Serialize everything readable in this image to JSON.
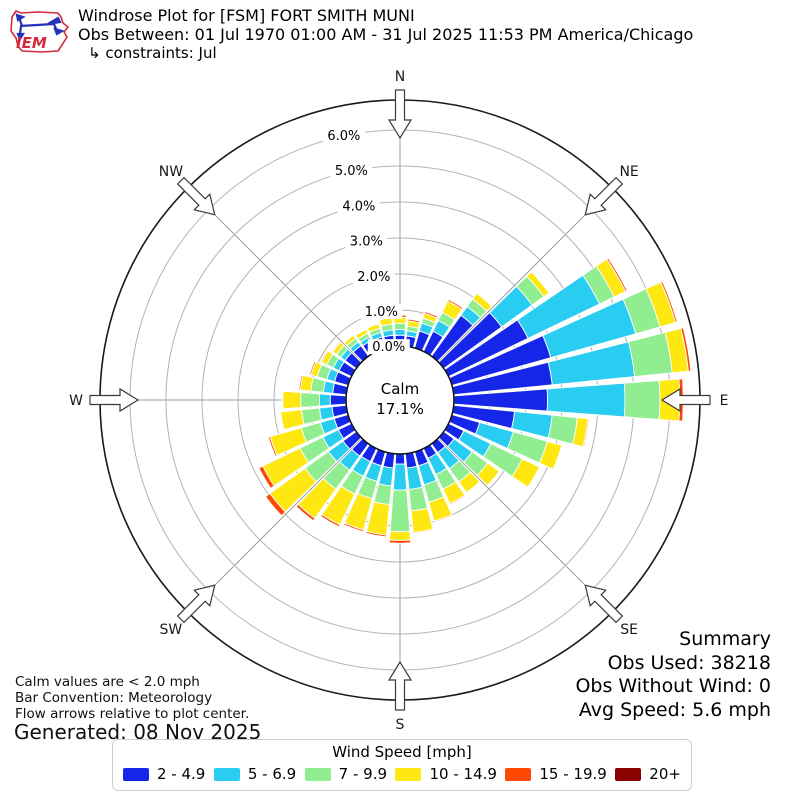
{
  "header": {
    "title": "Windrose Plot for [FSM] FORT SMITH MUNI",
    "subtitle": "Obs Between: 01 Jul 1970 01:00 AM - 31 Jul 2025 11:53 PM America/Chicago",
    "constraints": "↳ constraints: Jul",
    "logo_text": "IEM"
  },
  "notes": {
    "line1": "Calm values are < 2.0 mph",
    "line2": "Bar Convention: Meteorology",
    "line3": "Flow arrows relative to plot center.",
    "generated": "Generated: 08 Nov 2025"
  },
  "summary": {
    "title": "Summary",
    "obs_used": "Obs Used: 38218",
    "obs_without_wind": "Obs Without Wind: 0",
    "avg_speed": "Avg Speed: 5.6 mph"
  },
  "legend": {
    "title": "Wind Speed [mph]"
  },
  "chart_data": {
    "type": "windrose",
    "station": "[FSM] FORT SMITH MUNI",
    "center_label": {
      "line1": "Calm",
      "line2": "17.1%"
    },
    "calm_pct": 17.1,
    "ring_ticks_pct": [
      0,
      1,
      2,
      3,
      4,
      5,
      6
    ],
    "ring_labels": [
      "0.0%",
      "1.0%",
      "2.0%",
      "3.0%",
      "4.0%",
      "5.0%",
      "6.0%"
    ],
    "compass": [
      {
        "label": "N",
        "deg": 0
      },
      {
        "label": "NE",
        "deg": 45
      },
      {
        "label": "E",
        "deg": 90
      },
      {
        "label": "SE",
        "deg": 135
      },
      {
        "label": "S",
        "deg": 180
      },
      {
        "label": "SW",
        "deg": 225
      },
      {
        "label": "W",
        "deg": 270
      },
      {
        "label": "NW",
        "deg": 315
      }
    ],
    "speed_bins": [
      {
        "label": "2 - 4.9",
        "color": "#1526e8"
      },
      {
        "label": "5 - 6.9",
        "color": "#29cdf1"
      },
      {
        "label": "7 - 9.9",
        "color": "#90ee90"
      },
      {
        "label": "10 - 14.9",
        "color": "#ffe712"
      },
      {
        "label": "15 - 19.9",
        "color": "#fd4903"
      },
      {
        "label": "20+",
        "color": "#8b0000"
      }
    ],
    "directions_deg": [
      0,
      10,
      20,
      30,
      40,
      50,
      60,
      70,
      80,
      90,
      100,
      110,
      120,
      130,
      140,
      150,
      160,
      170,
      180,
      190,
      200,
      210,
      220,
      230,
      240,
      250,
      260,
      270,
      280,
      290,
      300,
      310,
      320,
      330,
      340,
      350
    ],
    "frequencies_pct_by_bin": [
      [
        0.3,
        0.16,
        0.17,
        0.17,
        0.06,
        0
      ],
      [
        0.29,
        0.14,
        0.13,
        0.15,
        0.05,
        0
      ],
      [
        0.49,
        0.23,
        0.14,
        0.14,
        0.05,
        0
      ],
      [
        0.62,
        0.33,
        0.25,
        0.35,
        0.05,
        0
      ],
      [
        1.4,
        0.3,
        0.25,
        0.2,
        0.02,
        0
      ],
      [
        1.98,
        1.04,
        0.4,
        0.18,
        0.02,
        0
      ],
      [
        2.45,
        2.2,
        0.45,
        0.35,
        0.05,
        0
      ],
      [
        2.85,
        2.45,
        0.7,
        0.45,
        0.05,
        0
      ],
      [
        2.75,
        2.3,
        1.05,
        0.45,
        0.07,
        0
      ],
      [
        2.6,
        2.15,
        0.97,
        0.55,
        0.1,
        0
      ],
      [
        1.7,
        1.05,
        0.7,
        0.3,
        0.03,
        0
      ],
      [
        0.8,
        0.97,
        0.98,
        0.42,
        0.02,
        0
      ],
      [
        0.47,
        0.83,
        0.97,
        0.53,
        0.02,
        0
      ],
      [
        0.35,
        0.62,
        0.53,
        0.4,
        0.02,
        0
      ],
      [
        0.3,
        0.55,
        0.45,
        0.37,
        0.02,
        0
      ],
      [
        0.3,
        0.5,
        0.45,
        0.45,
        0.03,
        0
      ],
      [
        0.4,
        0.55,
        0.5,
        0.55,
        0.03,
        0
      ],
      [
        0.4,
        0.6,
        0.6,
        0.6,
        0.03,
        0
      ],
      [
        0.28,
        0.72,
        1.16,
        0.24,
        0.08,
        0
      ],
      [
        0.4,
        0.5,
        0.52,
        0.85,
        0.05,
        0
      ],
      [
        0.4,
        0.45,
        0.5,
        0.9,
        0.05,
        0
      ],
      [
        0.4,
        0.45,
        0.55,
        0.95,
        0.06,
        0
      ],
      [
        0.42,
        0.48,
        0.65,
        1.0,
        0.08,
        0
      ],
      [
        0.45,
        0.5,
        0.8,
        1.2,
        0.15,
        0
      ],
      [
        0.4,
        0.48,
        0.7,
        1.15,
        0.12,
        0
      ],
      [
        0.4,
        0.4,
        0.55,
        0.9,
        0.05,
        0
      ],
      [
        0.4,
        0.35,
        0.5,
        0.58,
        0.02,
        0
      ],
      [
        0.44,
        0.3,
        0.52,
        0.5,
        0.02,
        0
      ],
      [
        0.38,
        0.26,
        0.35,
        0.29,
        0.04,
        0
      ],
      [
        0.39,
        0.22,
        0.28,
        0.18,
        0.04,
        0
      ],
      [
        0.38,
        0.18,
        0.2,
        0.16,
        0.03,
        0
      ],
      [
        0.38,
        0.15,
        0.14,
        0.13,
        0.03,
        0
      ],
      [
        0.36,
        0.13,
        0.12,
        0.11,
        0.02,
        0
      ],
      [
        0.33,
        0.12,
        0.11,
        0.12,
        0.02,
        0
      ],
      [
        0.32,
        0.13,
        0.12,
        0.13,
        0.02,
        0
      ],
      [
        0.31,
        0.15,
        0.16,
        0.18,
        0.05,
        0
      ]
    ],
    "axis_colors": {
      "grid": "#b3b3b3",
      "spokes": "#9e9e9e",
      "outer": "#1a1a1a"
    },
    "layout": {
      "bar_convention": "Meteorology",
      "arrows": "inward"
    }
  }
}
